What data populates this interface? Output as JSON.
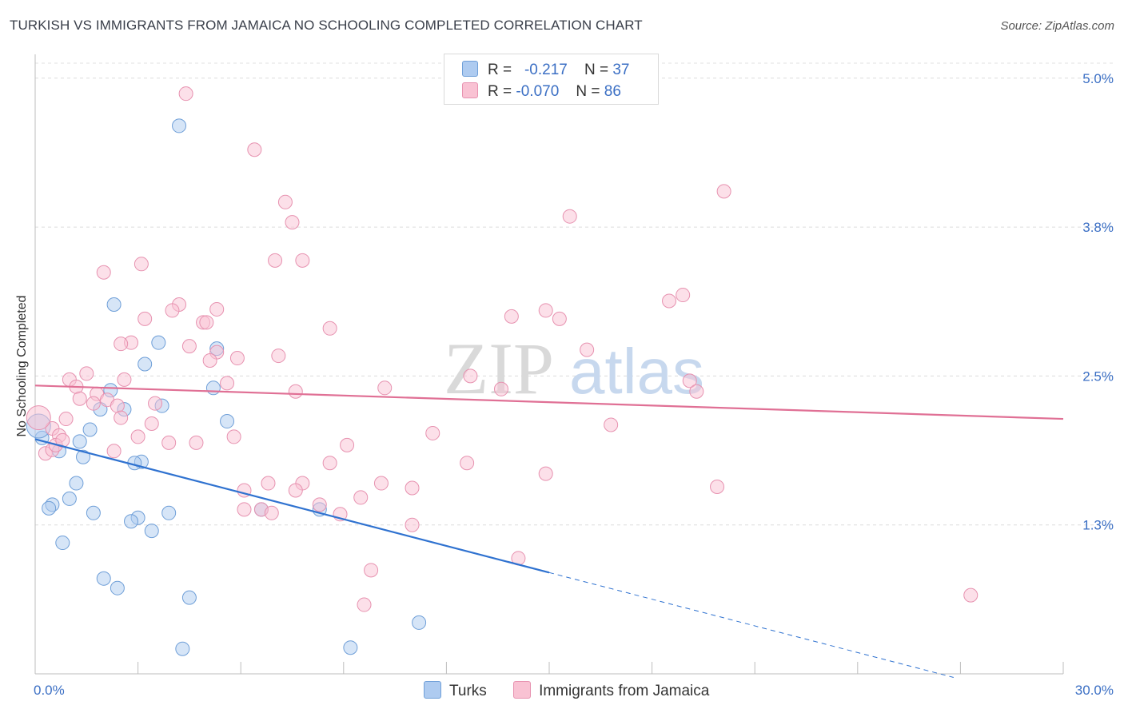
{
  "title": "TURKISH VS IMMIGRANTS FROM JAMAICA NO SCHOOLING COMPLETED CORRELATION CHART",
  "source": "Source: ZipAtlas.com",
  "watermark": {
    "zip": "ZIP",
    "atlas": "atlas"
  },
  "legend": {
    "rows": [
      {
        "r_label": "R =",
        "r_value": "-0.217",
        "n_label": "N =",
        "n_value": "37",
        "color": "#aecbf0",
        "border": "#6f9fd8"
      },
      {
        "r_label": "R =",
        "r_value": "-0.070",
        "n_label": "N =",
        "n_value": "86",
        "color": "#f9c2d3",
        "border": "#e792b0"
      }
    ]
  },
  "bottom_legend": [
    "Turks",
    "Immigrants from Jamaica"
  ],
  "chart_data": {
    "type": "scatter",
    "ylabel": "No Schooling Completed",
    "xlim": [
      0,
      30
    ],
    "ylim": [
      0,
      5.2
    ],
    "x_tick_labels": [
      {
        "value": 0,
        "label": "0.0%"
      },
      {
        "value": 30,
        "label": "30.0%"
      }
    ],
    "y_tick_labels": [
      {
        "value": 1.25,
        "label": "1.3%"
      },
      {
        "value": 2.5,
        "label": "2.5%"
      },
      {
        "value": 3.75,
        "label": "3.8%"
      },
      {
        "value": 5.0,
        "label": "5.0%"
      }
    ],
    "grid": "horizontal dashed",
    "series": [
      {
        "name": "Turks",
        "color": "#6f9fd8",
        "fill": "#aecbf0",
        "line_color": "#2f72d0",
        "trend": {
          "x0": 0,
          "y0": 1.97,
          "x1": 15,
          "y1": 0.85,
          "dash_x1": 26.8,
          "dash_y1": -0.03
        },
        "points": [
          [
            4.2,
            4.6
          ],
          [
            2.3,
            3.1
          ],
          [
            3.6,
            2.78
          ],
          [
            3.2,
            2.6
          ],
          [
            5.3,
            2.73
          ],
          [
            5.2,
            2.4
          ],
          [
            2.2,
            2.38
          ],
          [
            1.9,
            2.22
          ],
          [
            2.6,
            2.22
          ],
          [
            3.7,
            2.25
          ],
          [
            5.6,
            2.12
          ],
          [
            1.6,
            2.05
          ],
          [
            0.2,
            1.98
          ],
          [
            1.3,
            1.95
          ],
          [
            0.7,
            1.87
          ],
          [
            1.4,
            1.82
          ],
          [
            3.1,
            1.78
          ],
          [
            2.9,
            1.77
          ],
          [
            1.2,
            1.6
          ],
          [
            1.0,
            1.47
          ],
          [
            0.5,
            1.42
          ],
          [
            0.4,
            1.39
          ],
          [
            1.7,
            1.35
          ],
          [
            3.0,
            1.31
          ],
          [
            2.8,
            1.28
          ],
          [
            3.9,
            1.35
          ],
          [
            6.6,
            1.38
          ],
          [
            8.3,
            1.38
          ],
          [
            3.4,
            1.2
          ],
          [
            0.8,
            1.1
          ],
          [
            2.0,
            0.8
          ],
          [
            2.4,
            0.72
          ],
          [
            4.5,
            0.64
          ],
          [
            11.2,
            0.43
          ],
          [
            9.2,
            0.22
          ],
          [
            4.3,
            0.21
          ],
          [
            0.1,
            2.08
          ]
        ]
      },
      {
        "name": "Immigrants from Jamaica",
        "color": "#e792b0",
        "fill": "#f9c2d3",
        "line_color": "#e07095",
        "trend": {
          "x0": 0,
          "y0": 2.42,
          "x1": 30,
          "y1": 2.14
        },
        "points": [
          [
            4.4,
            4.87
          ],
          [
            6.4,
            4.4
          ],
          [
            20.1,
            4.05
          ],
          [
            7.3,
            3.96
          ],
          [
            7.5,
            3.79
          ],
          [
            15.6,
            3.84
          ],
          [
            3.1,
            3.44
          ],
          [
            2.0,
            3.37
          ],
          [
            7.0,
            3.47
          ],
          [
            7.8,
            3.47
          ],
          [
            18.5,
            3.13
          ],
          [
            18.9,
            3.18
          ],
          [
            14.9,
            3.05
          ],
          [
            13.9,
            3.0
          ],
          [
            15.3,
            2.98
          ],
          [
            4.2,
            3.1
          ],
          [
            4.0,
            3.05
          ],
          [
            5.3,
            3.06
          ],
          [
            3.2,
            2.98
          ],
          [
            4.9,
            2.95
          ],
          [
            5.0,
            2.95
          ],
          [
            8.6,
            2.9
          ],
          [
            2.8,
            2.78
          ],
          [
            2.5,
            2.77
          ],
          [
            4.5,
            2.75
          ],
          [
            5.3,
            2.7
          ],
          [
            16.1,
            2.72
          ],
          [
            7.1,
            2.67
          ],
          [
            5.9,
            2.65
          ],
          [
            5.1,
            2.63
          ],
          [
            1.5,
            2.52
          ],
          [
            1.0,
            2.47
          ],
          [
            2.6,
            2.47
          ],
          [
            5.6,
            2.44
          ],
          [
            12.7,
            2.5
          ],
          [
            13.6,
            2.39
          ],
          [
            7.6,
            2.37
          ],
          [
            10.2,
            2.4
          ],
          [
            19.1,
            2.46
          ],
          [
            19.3,
            2.37
          ],
          [
            1.2,
            2.41
          ],
          [
            1.8,
            2.35
          ],
          [
            1.3,
            2.31
          ],
          [
            2.1,
            2.3
          ],
          [
            1.7,
            2.27
          ],
          [
            2.4,
            2.25
          ],
          [
            3.5,
            2.27
          ],
          [
            3.4,
            2.1
          ],
          [
            0.9,
            2.14
          ],
          [
            0.5,
            2.06
          ],
          [
            2.5,
            2.15
          ],
          [
            0.7,
            2.0
          ],
          [
            3.0,
            1.99
          ],
          [
            5.8,
            1.99
          ],
          [
            11.6,
            2.02
          ],
          [
            16.8,
            2.09
          ],
          [
            9.1,
            1.92
          ],
          [
            0.3,
            1.85
          ],
          [
            0.5,
            1.88
          ],
          [
            0.6,
            1.92
          ],
          [
            0.8,
            1.96
          ],
          [
            2.3,
            1.87
          ],
          [
            3.9,
            1.94
          ],
          [
            4.7,
            1.94
          ],
          [
            8.6,
            1.77
          ],
          [
            12.6,
            1.77
          ],
          [
            14.9,
            1.68
          ],
          [
            6.8,
            1.6
          ],
          [
            10.1,
            1.6
          ],
          [
            11.0,
            1.56
          ],
          [
            7.8,
            1.6
          ],
          [
            7.6,
            1.54
          ],
          [
            6.1,
            1.54
          ],
          [
            9.5,
            1.48
          ],
          [
            8.3,
            1.42
          ],
          [
            19.9,
            1.57
          ],
          [
            6.1,
            1.38
          ],
          [
            6.6,
            1.38
          ],
          [
            6.9,
            1.35
          ],
          [
            8.9,
            1.34
          ],
          [
            11.0,
            1.25
          ],
          [
            14.1,
            0.97
          ],
          [
            9.8,
            0.87
          ],
          [
            9.6,
            0.58
          ],
          [
            27.3,
            0.66
          ],
          [
            0.1,
            2.15
          ]
        ]
      }
    ]
  }
}
